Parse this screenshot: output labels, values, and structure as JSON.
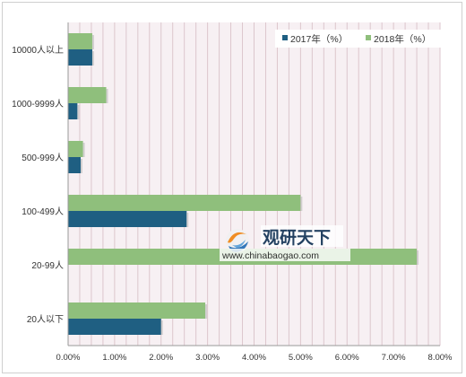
{
  "chart_data": {
    "type": "bar",
    "orientation": "horizontal",
    "title": "",
    "xlabel": "",
    "ylabel": "",
    "categories": [
      "10000人以上",
      "1000-9999人",
      "500-999人",
      "100-499人",
      "20-99人",
      "20人以下"
    ],
    "series": [
      {
        "name": "2017年（%）",
        "color": "#1f5f82",
        "values": [
          0.52,
          0.2,
          0.27,
          2.55,
          0,
          2.0
        ]
      },
      {
        "name": "2018年（%）",
        "color": "#8fbf7c",
        "values": [
          0.52,
          0.82,
          0.32,
          5.0,
          7.5,
          2.95
        ]
      }
    ],
    "xlim": [
      0,
      8
    ],
    "xticks": [
      "0.00%",
      "1.00%",
      "2.00%",
      "3.00%",
      "4.00%",
      "5.00%",
      "6.00%",
      "7.00%",
      "8.00%"
    ],
    "grid": {
      "vertical": true,
      "color": "#dcc6cc"
    },
    "plot_background": "#f7f0f3",
    "legend": {
      "position": "top-right"
    }
  },
  "watermark": {
    "brand": "观研天下",
    "url": "www.chinabaogao.com"
  }
}
